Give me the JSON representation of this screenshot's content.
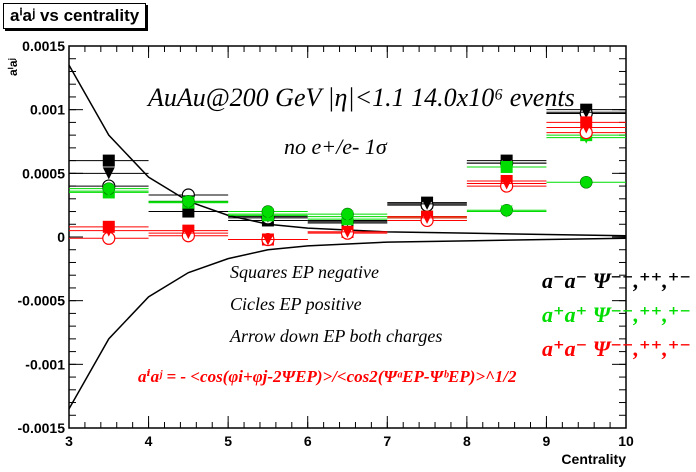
{
  "chart_data": {
    "type": "scatter",
    "title": "aⁱaʲ vs centrality",
    "xlabel": "Centrality",
    "ylabel": "aⁱaʲ",
    "xlim": [
      3,
      10
    ],
    "ylim": [
      -0.0015,
      0.0015
    ],
    "x_ticks": [
      "3",
      "4",
      "5",
      "6",
      "7",
      "8",
      "9",
      "10"
    ],
    "y_ticks": [
      "-0.0015",
      "-0.001",
      "-0.0005",
      "0",
      "0.0005",
      "0.001",
      "0.0015"
    ],
    "grid": false,
    "annotations": {
      "header": "AuAu@200 GeV |η|<1.1 14.0x10⁶ events",
      "cut": "no e+/e- 1σ",
      "legend_squares": "Squares EP negative",
      "legend_circles": "Cicles EP positive",
      "legend_arrows": "Arrow down EP both charges",
      "formula": "aⁱaʲ = - <cos(φi+φj-2ΨEP)>/<cos2(ΨᵃEP-ΨᵇEP)>^1/2",
      "label_mm": "a⁻a⁻  Ψ⁻⁻,⁺⁺,⁺⁻",
      "label_pp": "a⁺a⁺  Ψ⁻⁻,⁺⁺,⁺⁻",
      "label_pm": "a⁺a⁻  Ψ⁻⁻,⁺⁺,⁺⁻"
    },
    "colors": {
      "mm": "#000000",
      "pp": "#00dd00",
      "pm": "#ff0000",
      "frame": "#000000"
    },
    "series": [
      {
        "name": "a⁻a⁻ squares",
        "color": "#000000",
        "marker": "square",
        "x": [
          3.5,
          4.5,
          5.5,
          6.5,
          7.5,
          8.5,
          9.5
        ],
        "y": [
          0.0006,
          0.0002,
          0.00013,
          0.00011,
          0.00027,
          0.0006,
          0.001
        ]
      },
      {
        "name": "a⁻a⁻ circles",
        "color": "#000000",
        "marker": "circle-open",
        "x": [
          3.5,
          4.5,
          5.5,
          6.5,
          7.5,
          8.5,
          9.5
        ],
        "y": [
          0.0004,
          0.00033,
          0.00015,
          0.00012,
          0.00025,
          0.00058,
          0.00097
        ]
      },
      {
        "name": "a⁻a⁻ arrows",
        "color": "#000000",
        "marker": "triangle-down",
        "x": [
          3.5,
          4.5,
          5.5,
          6.5,
          7.5,
          8.5,
          9.5
        ],
        "y": [
          0.0005,
          0.00028,
          0.00016,
          0.00013,
          0.00026,
          0.00058,
          0.00098
        ]
      },
      {
        "name": "a⁺a⁺ squares",
        "color": "#00dd00",
        "marker": "square",
        "x": [
          3.5,
          4.5,
          5.5,
          6.5,
          7.5,
          8.5,
          9.5
        ],
        "y": [
          0.00035,
          0.00027,
          0.00017,
          0.00014,
          0.00016,
          0.00055,
          0.0008
        ]
      },
      {
        "name": "a⁺a⁺ circles",
        "color": "#00dd00",
        "marker": "circle",
        "x": [
          3.5,
          4.5,
          5.5,
          6.5,
          7.5,
          8.5,
          9.5
        ],
        "y": [
          0.00038,
          0.00028,
          0.0002,
          0.00018,
          0.00013,
          0.00021,
          0.00043
        ]
      },
      {
        "name": "a⁺a⁺ arrows",
        "color": "#00dd00",
        "marker": "triangle-down",
        "x": [
          3.5,
          4.5,
          5.5,
          6.5,
          7.5,
          8.5,
          9.5
        ],
        "y": [
          0.00036,
          0.00027,
          0.00018,
          0.00016,
          0.00015,
          0.0002,
          0.00078
        ]
      },
      {
        "name": "a⁺a⁻ squares",
        "color": "#ff0000",
        "marker": "square",
        "x": [
          3.5,
          4.5,
          5.5,
          6.5,
          7.5,
          8.5,
          9.5
        ],
        "y": [
          8e-05,
          5e-05,
          -2e-05,
          4e-05,
          0.00016,
          0.00044,
          0.0009
        ]
      },
      {
        "name": "a⁺a⁻ circles",
        "color": "#ff0000",
        "marker": "circle-open",
        "x": [
          3.5,
          4.5,
          5.5,
          6.5,
          7.5,
          8.5,
          9.5
        ],
        "y": [
          -1e-05,
          1e-05,
          -2e-05,
          3e-05,
          0.00013,
          0.0004,
          0.00082
        ]
      },
      {
        "name": "a⁺a⁻ arrows",
        "color": "#ff0000",
        "marker": "triangle-down",
        "x": [
          3.5,
          4.5,
          5.5,
          6.5,
          7.5,
          8.5,
          9.5
        ],
        "y": [
          5e-05,
          3e-05,
          -2e-05,
          4e-05,
          0.00015,
          0.00042,
          0.00086
        ]
      }
    ],
    "curves": [
      {
        "name": "upper envelope",
        "color": "#000000",
        "x": [
          3.0,
          3.5,
          4.0,
          4.5,
          5.0,
          5.5,
          6.0,
          7.0,
          8.0,
          9.0,
          10.0
        ],
        "y": [
          0.00135,
          0.0008,
          0.00047,
          0.00028,
          0.00017,
          0.0001,
          7e-05,
          4e-05,
          3e-05,
          2e-05,
          1e-05
        ]
      },
      {
        "name": "lower envelope",
        "color": "#000000",
        "x": [
          3.0,
          3.5,
          4.0,
          4.5,
          5.0,
          5.5,
          6.0,
          7.0,
          8.0,
          9.0,
          10.0
        ],
        "y": [
          -0.00135,
          -0.0008,
          -0.00047,
          -0.00028,
          -0.00017,
          -0.0001,
          -7e-05,
          -4e-05,
          -3e-05,
          -2e-05,
          -1e-05
        ]
      }
    ]
  }
}
